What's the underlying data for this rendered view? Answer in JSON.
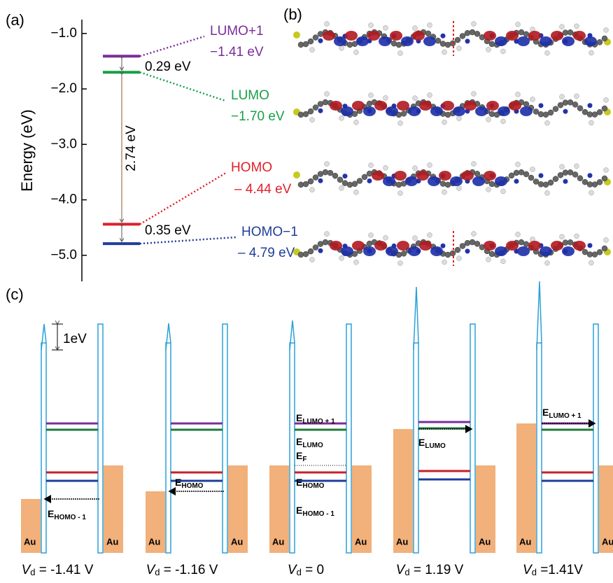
{
  "panel_labels": [
    "(a)",
    "(b)",
    "(c)"
  ],
  "energy_diagram": {
    "y_label": "Energy (eV)",
    "ylim": [
      -5.47,
      -0.75
    ],
    "yticks": [
      {
        "value": -1,
        "label": "−1.0"
      },
      {
        "value": -2,
        "label": "−2.0"
      },
      {
        "value": -3,
        "label": "−3.0"
      },
      {
        "value": -4,
        "label": "−4.0"
      },
      {
        "value": -5,
        "label": "−5.0"
      }
    ],
    "levels": [
      {
        "name": "LUMO+1",
        "value": -1.41,
        "label": "−1.41 eV",
        "color": "#7b2d9b"
      },
      {
        "name": "LUMO",
        "value": -1.7,
        "label": "−1.70 eV",
        "color": "#17a046"
      },
      {
        "name": "HOMO",
        "value": -4.44,
        "label": "– 4.44 eV",
        "color": "#e0202a"
      },
      {
        "name": "HOMO−1",
        "value": -4.79,
        "label": "– 4.79 eV",
        "color": "#1f3d9a"
      }
    ],
    "gaps": [
      {
        "value": 0.29,
        "label": "0.29 eV"
      },
      {
        "value": 2.74,
        "label": "2.74 eV"
      },
      {
        "value": 0.35,
        "label": "0.35 eV"
      }
    ]
  },
  "transport": {
    "electrode_label": "Au",
    "scale_label": "1eV",
    "panels": [
      {
        "voltage": {
          "symbol": "V",
          "subscript": "d",
          "text": " = -1.41 V"
        },
        "labels": [
          {
            "main": "E",
            "sub": "HOMO - 1"
          }
        ]
      },
      {
        "voltage": {
          "symbol": "V",
          "subscript": "d",
          "text": " = -1.16 V"
        },
        "labels": [
          {
            "main": "E",
            "sub": "HOMO"
          }
        ]
      },
      {
        "voltage": {
          "symbol": "V",
          "subscript": "d",
          "text": " = 0"
        },
        "labels": [
          {
            "main": "E",
            "sub": "LUMO + 1"
          },
          {
            "main": "E",
            "sub": "LUMO"
          },
          {
            "main": "E",
            "sub": "F"
          },
          {
            "main": "E",
            "sub": "HOMO"
          },
          {
            "main": "E",
            "sub": "HOMO - 1"
          }
        ]
      },
      {
        "voltage": {
          "symbol": "V",
          "subscript": "d",
          "text": " = 1.19 V"
        },
        "labels": [
          {
            "main": "E",
            "sub": "LUMO"
          }
        ]
      },
      {
        "voltage": {
          "symbol": "V",
          "subscript": "d",
          "text": " =1.41V"
        },
        "labels": [
          {
            "main": "E",
            "sub": "LUMO + 1"
          }
        ]
      }
    ]
  }
}
